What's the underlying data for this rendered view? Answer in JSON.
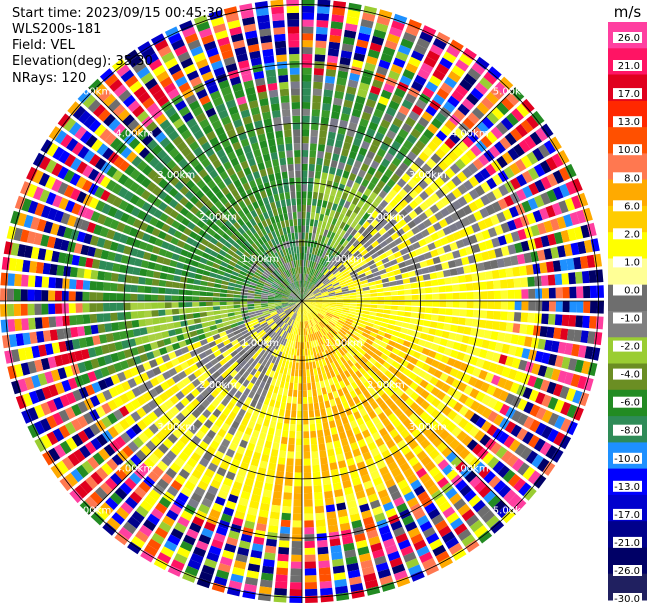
{
  "header": {
    "start_time": "Start time: 2023/09/15 00:45:30",
    "instrument": "WLS200s-181",
    "field": "Field: VEL",
    "elevation": "Elevation(deg): 35.30",
    "nrays": "NRays: 120"
  },
  "chart_data": {
    "type": "ppi",
    "field": "VEL",
    "units": "m/s",
    "n_rays": 120,
    "elevation_deg": 35.3,
    "range_rings_km": [
      1.0,
      2.0,
      3.0,
      4.0,
      5.0
    ],
    "range_ring_labels": [
      "1.00km",
      "2.00km",
      "3.00km",
      "4.00km",
      "5.00km"
    ],
    "max_range_km": 7.0,
    "colorbar": {
      "title": "m/s",
      "ticks": [
        "26.0",
        "21.0",
        "17.0",
        "13.0",
        "10.0",
        "8.0",
        "6.0",
        "2.0",
        "1.0",
        "0.0",
        "-1.0",
        "-2.0",
        "-4.0",
        "-6.0",
        "-8.0",
        "-10.0",
        "-13.0",
        "-17.0",
        "-21.0",
        "-26.0",
        "-30.0"
      ],
      "colors": [
        "#ff3fa0",
        "#ff1464",
        "#e0001e",
        "#ff2800",
        "#ff5000",
        "#ff7850",
        "#ffaa00",
        "#ffcc00",
        "#ffff00",
        "#ffff96",
        "#6e6e6e",
        "#808080",
        "#9acd32",
        "#6b8e23",
        "#228b22",
        "#2e8b57",
        "#1e90ff",
        "#0000ff",
        "#0000cd",
        "#00008b",
        "#000066",
        "#202060"
      ]
    },
    "wind_pattern": {
      "description_regions_deg": [
        {
          "from": 250,
          "to": 350,
          "class": "negative-strong"
        },
        {
          "from": 350,
          "to": 40,
          "class": "negative-weak"
        },
        {
          "from": 40,
          "to": 80,
          "class": "near-zero"
        },
        {
          "from": 80,
          "to": 200,
          "class": "positive"
        },
        {
          "from": 200,
          "to": 250,
          "class": "near-zero"
        }
      ]
    }
  }
}
